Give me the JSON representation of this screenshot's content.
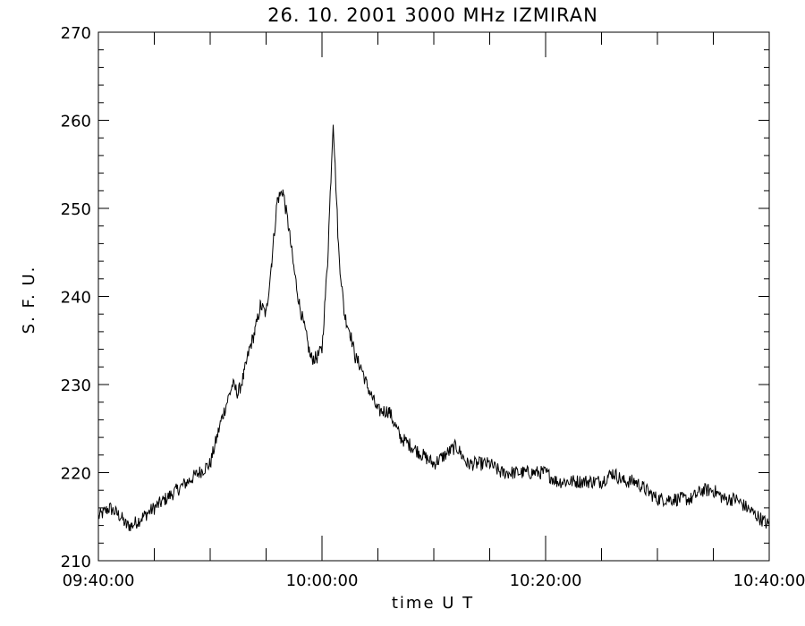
{
  "chart_data": {
    "type": "line",
    "title": "26.  10.  2001    3000  MHz    IZMIRAN",
    "xlabel": "time   U T",
    "ylabel": "S.  F.  U.",
    "x_unit": "minutes after 09:40:00 UT",
    "xlim": [
      0,
      60
    ],
    "ylim": [
      210,
      270
    ],
    "x_ticks": [
      "09:40:00",
      "10:00:00",
      "10:20:00",
      "10:40:00"
    ],
    "y_ticks": [
      "210",
      "220",
      "230",
      "240",
      "250",
      "260",
      "270"
    ],
    "grid": false,
    "series": [
      {
        "name": "",
        "color": "#000000",
        "x": [
          0,
          1,
          2,
          2.5,
          3,
          4,
          5,
          6,
          7,
          8,
          9,
          10,
          11,
          12,
          12.5,
          13,
          13.5,
          14,
          14.5,
          15,
          15.5,
          16,
          16.5,
          17,
          17.5,
          18,
          18.5,
          19,
          19.5,
          20,
          20.5,
          21,
          21.5,
          22,
          22.5,
          23,
          23.5,
          24,
          25,
          26,
          27,
          28,
          29,
          30,
          31,
          32,
          33,
          34,
          35,
          36,
          37,
          38,
          39,
          40,
          41,
          42,
          43,
          44,
          45,
          46,
          47,
          48,
          49,
          50,
          51,
          52,
          53,
          54,
          55,
          56,
          57,
          58,
          59,
          60
        ],
        "y": [
          215,
          216,
          215,
          214,
          214,
          215,
          216,
          217,
          218,
          219,
          220,
          221,
          226,
          230,
          229,
          231,
          234,
          236,
          239,
          238,
          244,
          251,
          252,
          248,
          243,
          239,
          236,
          233,
          233,
          234,
          244,
          260,
          245,
          238,
          236,
          233,
          232,
          230,
          227,
          227,
          224,
          223,
          222,
          221,
          222,
          223,
          221,
          221,
          221,
          220,
          220,
          220,
          220,
          220,
          219,
          219,
          219,
          219,
          219,
          220,
          219,
          219,
          218,
          217,
          217,
          217,
          217,
          218,
          218,
          217,
          217,
          216,
          215,
          214
        ]
      }
    ]
  }
}
